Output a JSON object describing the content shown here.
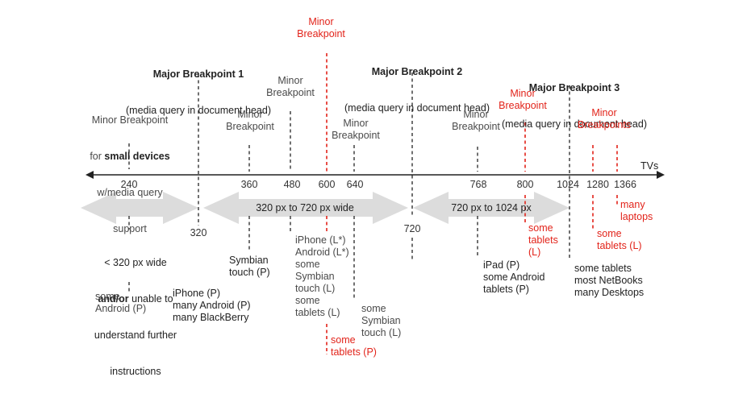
{
  "colors": {
    "red": "#e2231a",
    "gray_text": "#4a4a4a",
    "dark_text": "#222222",
    "arrow_fill": "#dcdcdc",
    "axis": "#222222"
  },
  "axis": {
    "end_label": "TVs",
    "ticks": [
      "240",
      "360",
      "480",
      "600",
      "640",
      "768",
      "800",
      "1024",
      "1280",
      "1366"
    ],
    "below_labels": [
      "320",
      "720"
    ]
  },
  "bands": [
    {
      "label": ""
    },
    {
      "label": "320 px to 720 px wide"
    },
    {
      "label": "720 px to 1024 px"
    }
  ],
  "major": [
    {
      "title": "Major Breakpoint 1",
      "subtitle": "(media query in document head)"
    },
    {
      "title": "Major Breakpoint 2",
      "subtitle": "(media query in document head)"
    },
    {
      "title": "Major Breakpoint 3",
      "subtitle": "(media query in document head)"
    }
  ],
  "minor": {
    "small_devices": {
      "line1": "Minor Breakpoint",
      "line2_pre": "for ",
      "line2_bold": "small devices",
      "line3": "w/media query",
      "line4": "support"
    },
    "m360": "Minor\nBreakpoint",
    "m480": "Minor\nBreakpoint",
    "m600_red": "Minor\nBreakpoint",
    "m640": "Minor\nBreakpoint",
    "m768": "Minor\nBreakpoint",
    "m800_red": "Minor\nBreakpoint",
    "m1280_red": "Minor\nBreakpoints"
  },
  "devices": {
    "small_desc_line1": "< 320 px wide",
    "small_desc_bold": "and/or",
    "small_desc_rest_line2": " unable to",
    "small_desc_line3": "understand further",
    "small_desc_line4": "instructions",
    "some_android_p": "some\nAndroid (P)",
    "iphone_p": "iPhone (P)\nmany Android (P)\nmany BlackBerry",
    "symbian_touch_p": "Symbian\ntouch (P)",
    "iphone_l": "iPhone (L*)\nAndroid (L*)\nsome\nSymbian\ntouch (L)\nsome\ntablets (L)",
    "some_symbian_l": "some\nSymbian\ntouch (L)",
    "some_tablets_p_red": "some\ntablets (P)",
    "ipad_p": "iPad (P)\nsome Android\ntablets (P)",
    "some_tablets_l_red": "some\ntablets\n(L)",
    "netbooks": "some tablets\nmost NetBooks\nmany Desktops",
    "some_tablets_l2_red": "some\ntablets (L)",
    "many_laptops_red": "many\nlaptops"
  }
}
